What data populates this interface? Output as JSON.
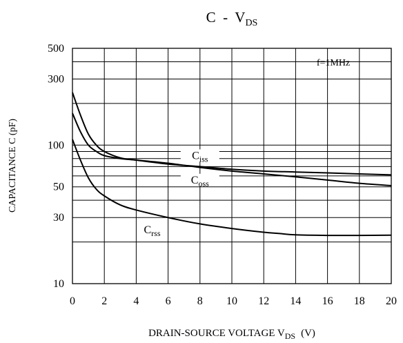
{
  "chart_data": {
    "type": "line",
    "title": {
      "main": "C  -  V",
      "sub": "DS"
    },
    "xlabel": {
      "main": "DRAIN-SOURCE VOLTAGE V",
      "sub": "DS",
      "unit": "(V)"
    },
    "ylabel": "CAPACITANCE C  (pF)",
    "xlim": [
      0,
      20
    ],
    "ylim": [
      10,
      500
    ],
    "yscale": "log",
    "grid": true,
    "x_ticks": [
      0,
      2,
      4,
      6,
      8,
      10,
      12,
      14,
      16,
      18,
      20
    ],
    "x_tick_labels": [
      "0",
      "2",
      "4",
      "6",
      "8",
      "10",
      "12",
      "14",
      "16",
      "18",
      "20"
    ],
    "y_ticks": [
      10,
      30,
      50,
      100,
      300,
      500
    ],
    "y_tick_labels": [
      "10",
      "30",
      "50",
      "100",
      "300",
      "500"
    ],
    "y_gridlines": [
      20,
      30,
      40,
      50,
      60,
      70,
      80,
      90,
      100,
      200,
      300,
      400,
      500
    ],
    "annotation": "f=1MHz",
    "series": [
      {
        "name": "Ciss",
        "name_main": "C",
        "name_sub": "iss",
        "x": [
          0,
          0.5,
          1,
          1.5,
          2,
          3,
          4,
          6,
          8,
          10,
          12,
          14,
          16,
          18,
          20
        ],
        "y": [
          240,
          165,
          120,
          100,
          90,
          81,
          78,
          73,
          70,
          67,
          65,
          64,
          63,
          62,
          61
        ]
      },
      {
        "name": "Coss",
        "name_main": "C",
        "name_sub": "oss",
        "x": [
          0,
          0.5,
          1,
          1.5,
          2,
          3,
          4,
          6,
          8,
          10,
          12,
          14,
          16,
          18,
          20
        ],
        "y": [
          170,
          125,
          100,
          90,
          84,
          80,
          78,
          74,
          69,
          65,
          62,
          59,
          56,
          53,
          51
        ]
      },
      {
        "name": "Crss",
        "name_main": "C",
        "name_sub": "rss",
        "x": [
          0,
          0.5,
          1,
          1.5,
          2,
          3,
          4,
          6,
          8,
          10,
          12,
          13,
          14,
          16,
          18,
          20
        ],
        "y": [
          110,
          78,
          58,
          48,
          43,
          37,
          34,
          30,
          27,
          25,
          23.5,
          23,
          22.5,
          22.3,
          22.3,
          22.4
        ]
      }
    ]
  }
}
